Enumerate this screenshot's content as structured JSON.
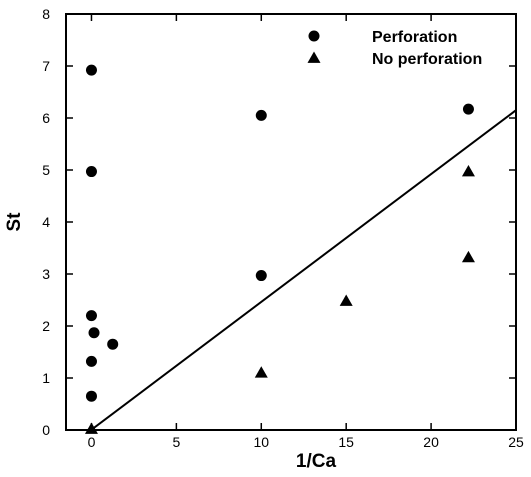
{
  "chart_data": {
    "type": "scatter",
    "xlabel": "1/Ca",
    "ylabel": "St",
    "xlim": [
      -1.5,
      25
    ],
    "ylim": [
      0,
      8
    ],
    "x_ticks": [
      0,
      5,
      10,
      15,
      20,
      25
    ],
    "y_ticks": [
      0,
      1,
      2,
      3,
      4,
      5,
      6,
      7,
      8
    ],
    "grid": false,
    "legend_position": "top-right",
    "series": [
      {
        "name": "Perforation",
        "marker": "circle",
        "color": "#000000",
        "points": [
          [
            0.0,
            6.92
          ],
          [
            0.0,
            4.97
          ],
          [
            0.0,
            2.2
          ],
          [
            0.15,
            1.87
          ],
          [
            0.0,
            1.32
          ],
          [
            0.0,
            0.65
          ],
          [
            1.25,
            1.65
          ],
          [
            10.0,
            6.05
          ],
          [
            10.0,
            2.97
          ],
          [
            22.2,
            6.17
          ]
        ]
      },
      {
        "name": "No perforation",
        "marker": "triangle",
        "color": "#000000",
        "points": [
          [
            0.0,
            0.02
          ],
          [
            10.0,
            1.1
          ],
          [
            15.0,
            2.48
          ],
          [
            22.2,
            4.97
          ],
          [
            22.2,
            3.32
          ]
        ]
      }
    ],
    "lines": [
      {
        "x": [
          -1.0,
          25.0
        ],
        "y": [
          -0.24,
          6.15
        ],
        "color": "#000000"
      }
    ]
  }
}
